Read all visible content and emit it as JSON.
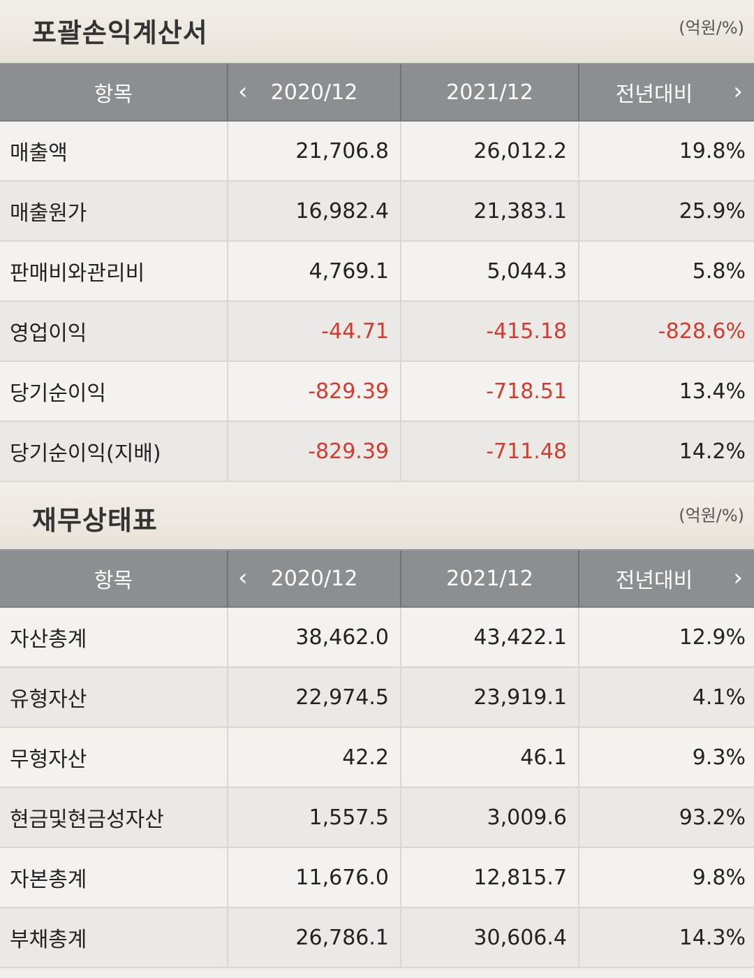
{
  "income": {
    "title": "포괄손익계산서",
    "unit": "(억원/%)",
    "header": {
      "item": "항목",
      "col1": "2020/12",
      "col2": "2021/12",
      "col3": "전년대비"
    },
    "rows": [
      {
        "label": "매출액",
        "v1": "21,706.8",
        "v2": "26,012.2",
        "v3": "19.8%"
      },
      {
        "label": "매출원가",
        "v1": "16,982.4",
        "v2": "21,383.1",
        "v3": "25.9%"
      },
      {
        "label": "판매비와관리비",
        "v1": "4,769.1",
        "v2": "5,044.3",
        "v3": "5.8%"
      },
      {
        "label": "영업이익",
        "v1": "-44.71",
        "v2": "-415.18",
        "v3": "-828.6%"
      },
      {
        "label": "당기순이익",
        "v1": "-829.39",
        "v2": "-718.51",
        "v3": "13.4%"
      },
      {
        "label": "당기순이익(지배)",
        "v1": "-829.39",
        "v2": "-711.48",
        "v3": "14.2%"
      }
    ]
  },
  "balance": {
    "title": "재무상태표",
    "unit": "(억원/%)",
    "header": {
      "item": "항목",
      "col1": "2020/12",
      "col2": "2021/12",
      "col3": "전년대비"
    },
    "rows": [
      {
        "label": "자산총계",
        "v1": "38,462.0",
        "v2": "43,422.1",
        "v3": "12.9%"
      },
      {
        "label": "유형자산",
        "v1": "22,974.5",
        "v2": "23,919.1",
        "v3": "4.1%"
      },
      {
        "label": "무형자산",
        "v1": "42.2",
        "v2": "46.1",
        "v3": "9.3%"
      },
      {
        "label": "현금및현금성자산",
        "v1": "1,557.5",
        "v2": "3,009.6",
        "v3": "93.2%"
      },
      {
        "label": "자본총계",
        "v1": "11,676.0",
        "v2": "12,815.7",
        "v3": "9.8%"
      },
      {
        "label": "부채총계",
        "v1": "26,786.1",
        "v2": "30,606.4",
        "v3": "14.3%"
      }
    ]
  },
  "icons": {
    "prev": "chevron-left-icon",
    "next": "chevron-right-icon"
  },
  "colors": {
    "header_bg": "#8c8e92",
    "negative": "#d43a2e",
    "row_odd": "#f4f2ef",
    "row_even": "#ebe9e6"
  }
}
